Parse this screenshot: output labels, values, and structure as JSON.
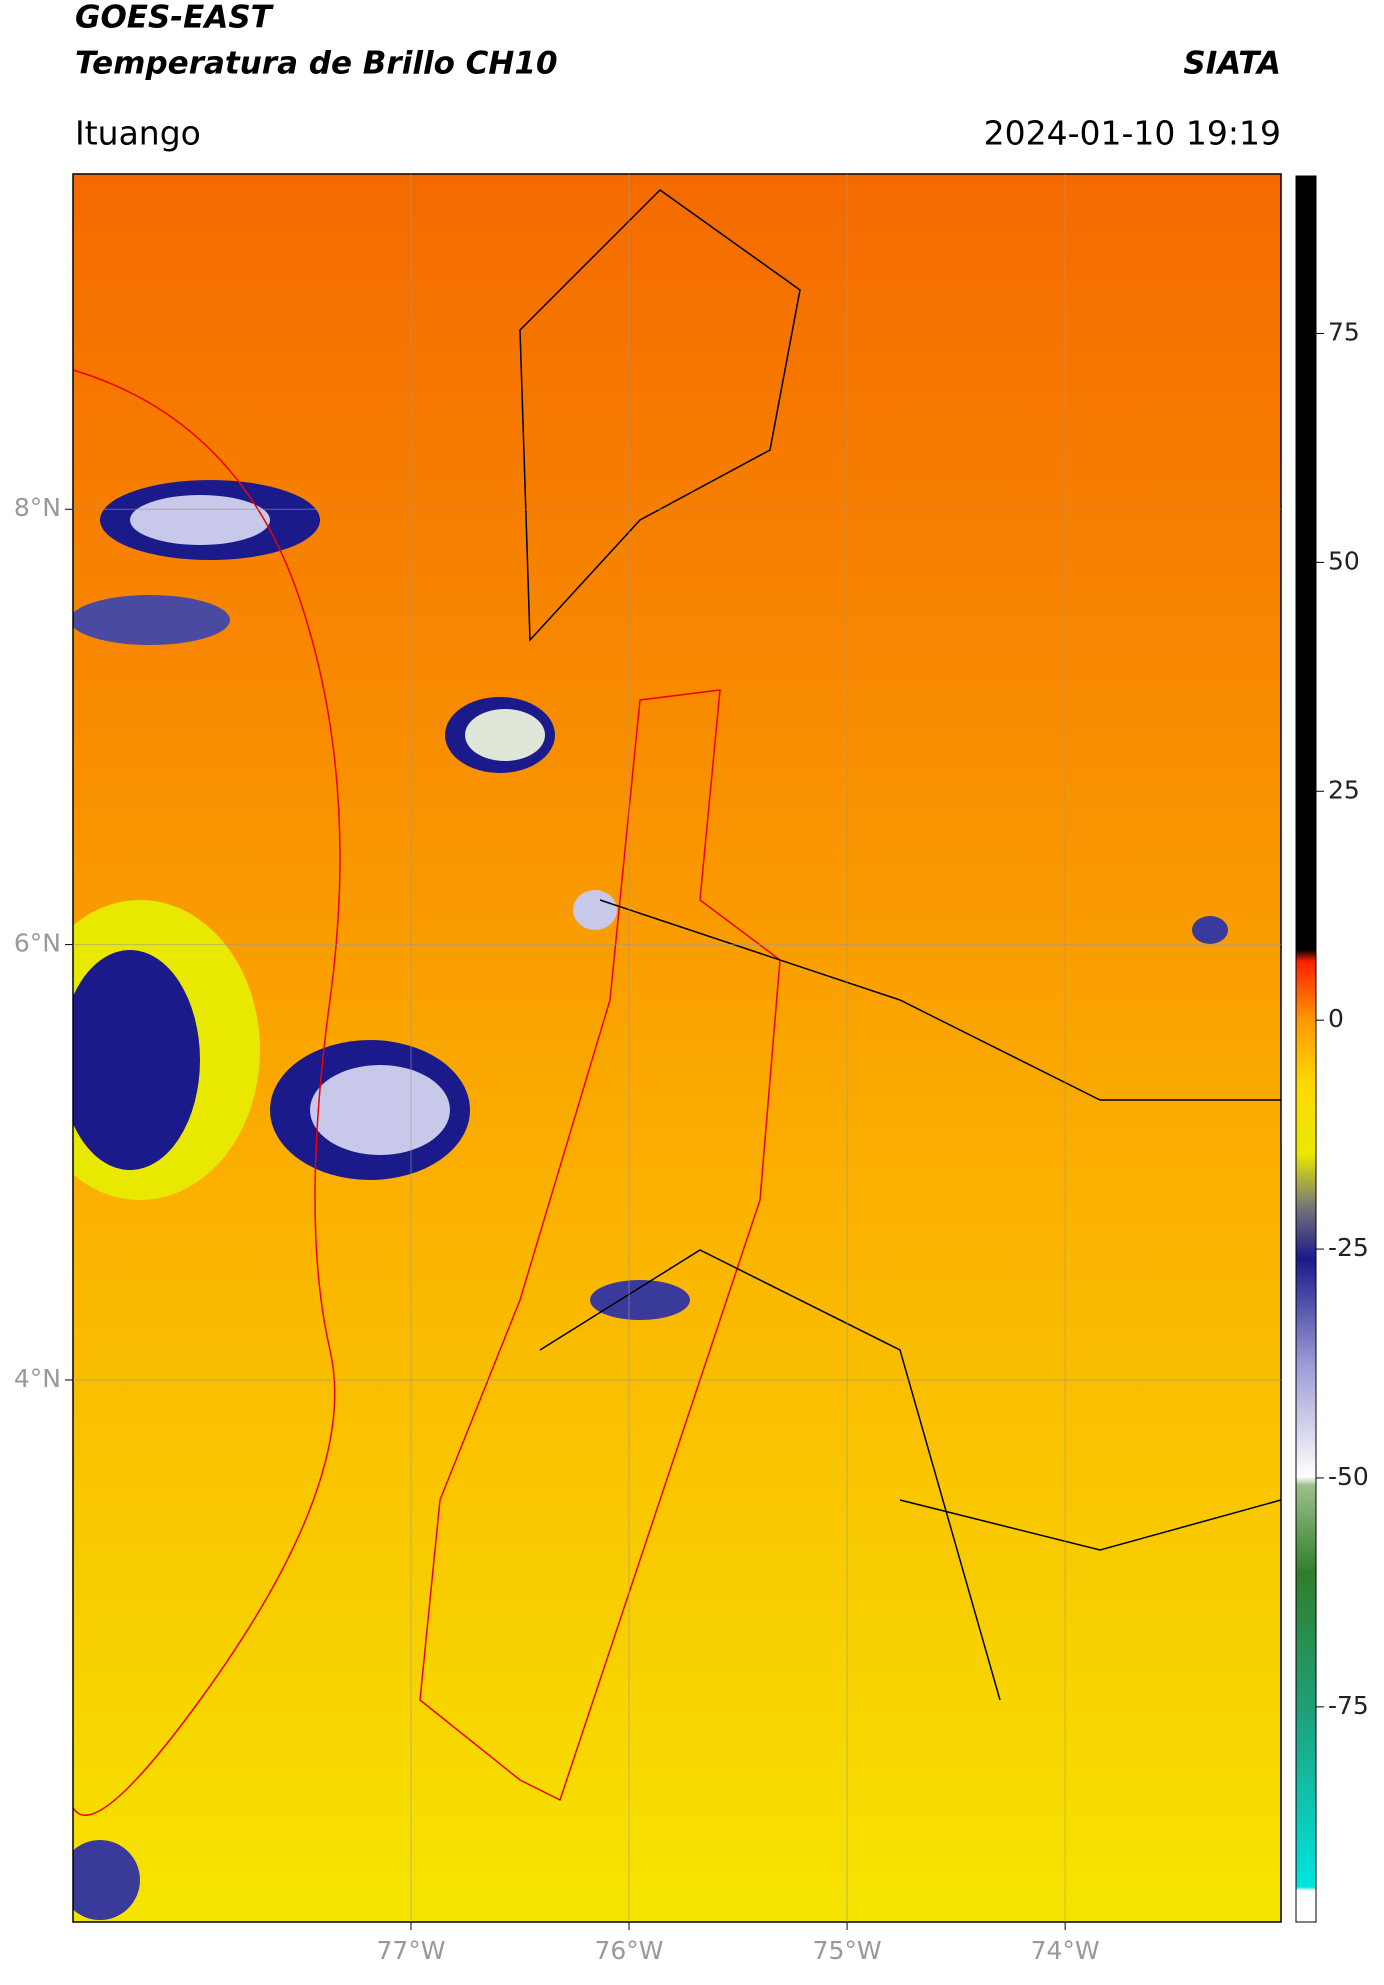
{
  "header": {
    "title": "GOES-EAST",
    "subtitle": "Temperatura de Brillo CH10",
    "org": "SIATA",
    "location": "Ituango",
    "timestamp": "2024-01-10 19:19"
  },
  "map": {
    "latlim": [
      1.51,
      9.54
    ],
    "lonlim": [
      -78.55,
      -73.01
    ],
    "lat_ticks": [
      {
        "value": 8,
        "label": "8°N"
      },
      {
        "value": 6,
        "label": "6°N"
      },
      {
        "value": 4,
        "label": "4°N"
      }
    ],
    "lon_ticks": [
      {
        "value": -77,
        "label": "77°W"
      },
      {
        "value": -76,
        "label": "76°W"
      },
      {
        "value": -75,
        "label": "75°W"
      },
      {
        "value": -74,
        "label": "74°W"
      }
    ]
  },
  "colorbar": {
    "lim": [
      -98.5,
      92.2
    ],
    "ticks": [
      75,
      50,
      25,
      0,
      -25,
      -50,
      -75
    ]
  }
}
